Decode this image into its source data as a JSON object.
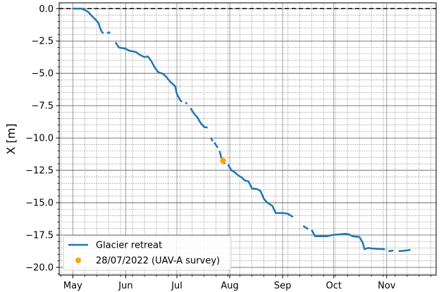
{
  "chart_data": {
    "type": "line",
    "ylabel": "X [m]",
    "xlabel": "",
    "title": "",
    "x_ticks": [
      "May",
      "Jun",
      "Jul",
      "Aug",
      "Sep",
      "Oct",
      "Nov"
    ],
    "y_ticks": [
      "0.0",
      "−2.5",
      "−5.0",
      "−7.5",
      "−10.0",
      "−12.5",
      "−15.0",
      "−17.5",
      "−20.0"
    ],
    "xlim": [
      "2022-04-23",
      "2022-11-30"
    ],
    "ylim": [
      -20.6,
      0.45
    ],
    "grid": true,
    "legend_position": "lower-left",
    "reference_line": {
      "y": 0.0,
      "style": "dashed",
      "color": "#000000"
    },
    "series": [
      {
        "name": "Glacier retreat",
        "color": "#1f77b4",
        "segments": [
          [
            [
              "2022-05-01",
              0.0
            ],
            [
              "2022-05-06",
              0.0
            ],
            [
              "2022-05-08",
              -0.1
            ],
            [
              "2022-05-10",
              -0.25
            ],
            [
              "2022-05-12",
              -0.55
            ],
            [
              "2022-05-14",
              -0.8
            ],
            [
              "2022-05-16",
              -1.1
            ],
            [
              "2022-05-17",
              -1.5
            ],
            [
              "2022-05-18",
              -1.8
            ],
            [
              "2022-05-19",
              -1.9
            ]
          ],
          [
            [
              "2022-05-21",
              -1.88
            ],
            [
              "2022-05-23",
              -1.85
            ]
          ],
          [
            [
              "2022-05-26",
              -2.6
            ],
            [
              "2022-05-28",
              -3.0
            ],
            [
              "2022-06-01",
              -3.1
            ],
            [
              "2022-06-03",
              -3.25
            ],
            [
              "2022-06-07",
              -3.35
            ],
            [
              "2022-06-09",
              -3.55
            ],
            [
              "2022-06-12",
              -3.75
            ],
            [
              "2022-06-14",
              -3.7
            ],
            [
              "2022-06-16",
              -4.05
            ],
            [
              "2022-06-18",
              -4.55
            ],
            [
              "2022-06-20",
              -4.9
            ],
            [
              "2022-06-23",
              -5.05
            ],
            [
              "2022-06-25",
              -5.3
            ],
            [
              "2022-06-27",
              -5.65
            ],
            [
              "2022-06-30",
              -6.0
            ],
            [
              "2022-07-01",
              -6.6
            ],
            [
              "2022-07-03",
              -7.1
            ],
            [
              "2022-07-04",
              -7.2
            ]
          ],
          [
            [
              "2022-07-06",
              -7.25
            ],
            [
              "2022-07-07",
              -7.35
            ]
          ],
          [
            [
              "2022-07-09",
              -7.7
            ],
            [
              "2022-07-11",
              -8.1
            ],
            [
              "2022-07-13",
              -8.4
            ],
            [
              "2022-07-15",
              -8.85
            ],
            [
              "2022-07-17",
              -9.15
            ],
            [
              "2022-07-19",
              -9.2
            ]
          ],
          [
            [
              "2022-07-21",
              -10.0
            ],
            [
              "2022-07-22",
              -10.25
            ]
          ],
          [
            [
              "2022-07-23",
              -10.35
            ],
            [
              "2022-07-25",
              -10.75
            ]
          ],
          [
            [
              "2022-07-26",
              -11.0
            ],
            [
              "2022-07-27",
              -11.5
            ],
            [
              "2022-07-28",
              -11.75
            ],
            [
              "2022-07-29",
              -12.0
            ]
          ],
          [
            [
              "2022-07-31",
              -12.05
            ],
            [
              "2022-08-02",
              -12.5
            ],
            [
              "2022-08-04",
              -12.65
            ],
            [
              "2022-08-06",
              -12.9
            ],
            [
              "2022-08-08",
              -13.05
            ],
            [
              "2022-08-10",
              -13.3
            ],
            [
              "2022-08-12",
              -13.35
            ],
            [
              "2022-08-14",
              -13.9
            ],
            [
              "2022-08-17",
              -13.95
            ],
            [
              "2022-08-19",
              -14.1
            ],
            [
              "2022-08-21",
              -14.7
            ],
            [
              "2022-08-23",
              -15.0
            ],
            [
              "2022-08-26",
              -15.25
            ],
            [
              "2022-08-28",
              -15.8
            ],
            [
              "2022-09-01",
              -15.8
            ],
            [
              "2022-09-04",
              -15.85
            ],
            [
              "2022-09-07",
              -16.1
            ]
          ],
          [
            [
              "2022-09-13",
              -16.8
            ],
            [
              "2022-09-16",
              -17.05
            ]
          ],
          [
            [
              "2022-09-18",
              -17.1
            ],
            [
              "2022-09-20",
              -17.6
            ],
            [
              "2022-09-27",
              -17.6
            ],
            [
              "2022-09-30",
              -17.5
            ],
            [
              "2022-10-04",
              -17.45
            ],
            [
              "2022-10-08",
              -17.4
            ],
            [
              "2022-10-10",
              -17.45
            ],
            [
              "2022-10-12",
              -17.6
            ],
            [
              "2022-10-16",
              -17.65
            ],
            [
              "2022-10-18",
              -18.1
            ],
            [
              "2022-10-19",
              -18.6
            ],
            [
              "2022-10-21",
              -18.5
            ],
            [
              "2022-10-24",
              -18.55
            ],
            [
              "2022-10-31",
              -18.6
            ]
          ],
          [
            [
              "2022-11-02",
              -18.75
            ],
            [
              "2022-11-05",
              -18.7
            ]
          ],
          [
            [
              "2022-11-08",
              -18.75
            ],
            [
              "2022-11-12",
              -18.7
            ],
            [
              "2022-11-15",
              -18.65
            ]
          ]
        ]
      },
      {
        "name": "28/07/2022 (UAV-A survey)",
        "color": "#ffa500",
        "type": "scatter",
        "points": [
          [
            "2022-07-28",
            -11.75
          ]
        ]
      }
    ]
  }
}
